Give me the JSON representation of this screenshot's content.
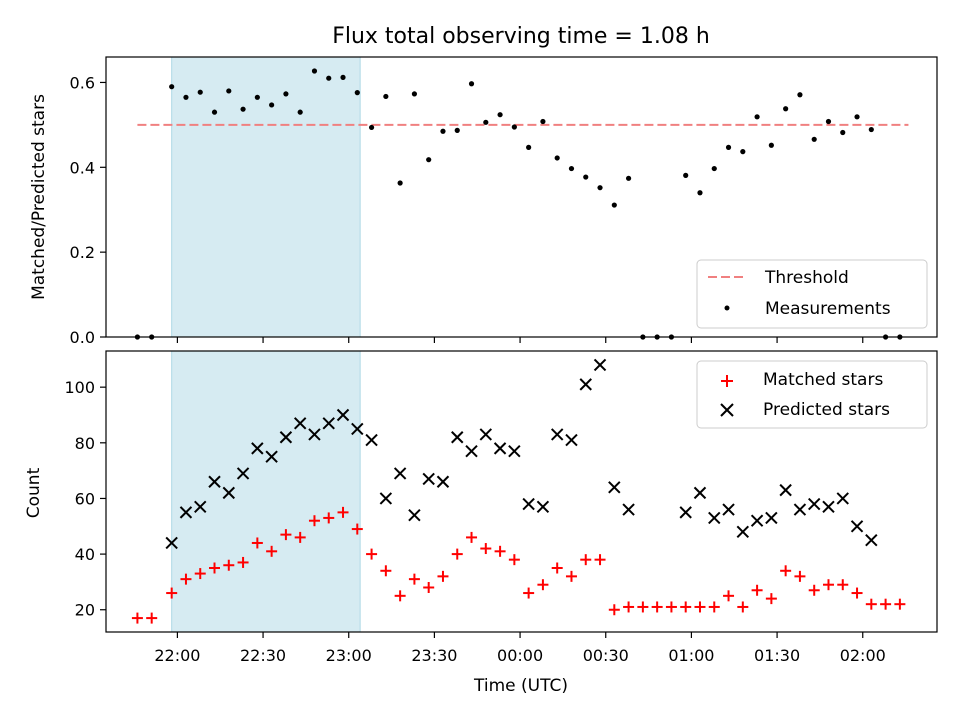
{
  "title": "Flux total observing time = 1.08 h",
  "colors": {
    "threshold": "#f08080",
    "measurements": "#000000",
    "matched": "#ff0000",
    "predicted": "#000000",
    "highlight": "#add8e6"
  },
  "chart_data": [
    {
      "type": "scatter",
      "ylabel": "Matched/Predicted stars",
      "ylim": [
        0,
        0.66
      ],
      "yticks": [
        "0.0",
        "0.2",
        "0.4",
        "0.6"
      ],
      "legend": {
        "placement": "lower-right",
        "entries": [
          "Threshold",
          "Measurements"
        ]
      },
      "threshold": {
        "name": "Threshold",
        "y": 0.5,
        "x_start": "21:46",
        "x_end": "02:16"
      },
      "highlight_span": [
        "21:58",
        "23:04"
      ],
      "series": [
        {
          "name": "Measurements",
          "points": [
            [
              "21:46",
              0.0
            ],
            [
              "21:51",
              0.0
            ],
            [
              "21:58",
              0.59
            ],
            [
              "22:03",
              0.565
            ],
            [
              "22:08",
              0.577
            ],
            [
              "22:13",
              0.53
            ],
            [
              "22:18",
              0.58
            ],
            [
              "22:23",
              0.537
            ],
            [
              "22:28",
              0.565
            ],
            [
              "22:33",
              0.547
            ],
            [
              "22:38",
              0.573
            ],
            [
              "22:43",
              0.53
            ],
            [
              "22:48",
              0.627
            ],
            [
              "22:53",
              0.61
            ],
            [
              "22:58",
              0.612
            ],
            [
              "23:03",
              0.576
            ],
            [
              "23:08",
              0.494
            ],
            [
              "23:13",
              0.567
            ],
            [
              "23:18",
              0.363
            ],
            [
              "23:23",
              0.573
            ],
            [
              "23:28",
              0.418
            ],
            [
              "23:33",
              0.485
            ],
            [
              "23:38",
              0.487
            ],
            [
              "23:43",
              0.597
            ],
            [
              "23:48",
              0.506
            ],
            [
              "23:53",
              0.524
            ],
            [
              "23:58",
              0.495
            ],
            [
              "00:03",
              0.447
            ],
            [
              "00:08",
              0.508
            ],
            [
              "00:13",
              0.422
            ],
            [
              "00:18",
              0.397
            ],
            [
              "00:23",
              0.377
            ],
            [
              "00:28",
              0.352
            ],
            [
              "00:33",
              0.311
            ],
            [
              "00:38",
              0.374
            ],
            [
              "00:43",
              0.0
            ],
            [
              "00:48",
              0.0
            ],
            [
              "00:53",
              0.0
            ],
            [
              "00:58",
              0.381
            ],
            [
              "01:03",
              0.34
            ],
            [
              "01:08",
              0.397
            ],
            [
              "01:13",
              0.447
            ],
            [
              "01:18",
              0.437
            ],
            [
              "01:23",
              0.519
            ],
            [
              "01:28",
              0.452
            ],
            [
              "01:33",
              0.538
            ],
            [
              "01:38",
              0.571
            ],
            [
              "01:43",
              0.466
            ],
            [
              "01:48",
              0.508
            ],
            [
              "01:53",
              0.482
            ],
            [
              "01:58",
              0.519
            ],
            [
              "02:03",
              0.489
            ],
            [
              "02:08",
              0.0
            ],
            [
              "02:13",
              0.0
            ]
          ]
        }
      ]
    },
    {
      "type": "scatter",
      "xlabel": "Time (UTC)",
      "ylabel": "Count",
      "xticks": [
        "22:00",
        "22:30",
        "23:00",
        "23:30",
        "00:00",
        "00:30",
        "01:00",
        "01:30",
        "02:00"
      ],
      "xlim": [
        "21:35",
        "02:26"
      ],
      "ylim": [
        12,
        113
      ],
      "yticks": [
        "20",
        "40",
        "60",
        "80",
        "100"
      ],
      "legend": {
        "placement": "top-right",
        "entries": [
          "Matched stars",
          "Predicted stars"
        ]
      },
      "highlight_span": [
        "21:58",
        "23:04"
      ],
      "series": [
        {
          "name": "Matched stars",
          "marker": "plus",
          "points": [
            [
              "21:46",
              17
            ],
            [
              "21:51",
              17
            ],
            [
              "21:58",
              26
            ],
            [
              "22:03",
              31
            ],
            [
              "22:08",
              33
            ],
            [
              "22:13",
              35
            ],
            [
              "22:18",
              36
            ],
            [
              "22:23",
              37
            ],
            [
              "22:28",
              44
            ],
            [
              "22:33",
              41
            ],
            [
              "22:38",
              47
            ],
            [
              "22:43",
              46
            ],
            [
              "22:48",
              52
            ],
            [
              "22:53",
              53
            ],
            [
              "22:58",
              55
            ],
            [
              "23:03",
              49
            ],
            [
              "23:08",
              40
            ],
            [
              "23:13",
              34
            ],
            [
              "23:18",
              25
            ],
            [
              "23:23",
              31
            ],
            [
              "23:28",
              28
            ],
            [
              "23:33",
              32
            ],
            [
              "23:38",
              40
            ],
            [
              "23:43",
              46
            ],
            [
              "23:48",
              42
            ],
            [
              "23:53",
              41
            ],
            [
              "23:58",
              38
            ],
            [
              "00:03",
              26
            ],
            [
              "00:08",
              29
            ],
            [
              "00:13",
              35
            ],
            [
              "00:18",
              32
            ],
            [
              "00:23",
              38
            ],
            [
              "00:28",
              38
            ],
            [
              "00:33",
              20
            ],
            [
              "00:38",
              21
            ],
            [
              "00:43",
              21
            ],
            [
              "00:48",
              21
            ],
            [
              "00:53",
              21
            ],
            [
              "00:58",
              21
            ],
            [
              "01:03",
              21
            ],
            [
              "01:08",
              21
            ],
            [
              "01:13",
              25
            ],
            [
              "01:18",
              21
            ],
            [
              "01:23",
              27
            ],
            [
              "01:28",
              24
            ],
            [
              "01:33",
              34
            ],
            [
              "01:38",
              32
            ],
            [
              "01:43",
              27
            ],
            [
              "01:48",
              29
            ],
            [
              "01:53",
              29
            ],
            [
              "01:58",
              26
            ],
            [
              "02:03",
              22
            ],
            [
              "02:08",
              22
            ],
            [
              "02:13",
              22
            ]
          ]
        },
        {
          "name": "Predicted stars",
          "marker": "x",
          "points": [
            [
              "21:58",
              44
            ],
            [
              "22:03",
              55
            ],
            [
              "22:08",
              57
            ],
            [
              "22:13",
              66
            ],
            [
              "22:18",
              62
            ],
            [
              "22:23",
              69
            ],
            [
              "22:28",
              78
            ],
            [
              "22:33",
              75
            ],
            [
              "22:38",
              82
            ],
            [
              "22:43",
              87
            ],
            [
              "22:48",
              83
            ],
            [
              "22:53",
              87
            ],
            [
              "22:58",
              90
            ],
            [
              "23:03",
              85
            ],
            [
              "23:08",
              81
            ],
            [
              "23:13",
              60
            ],
            [
              "23:18",
              69
            ],
            [
              "23:23",
              54
            ],
            [
              "23:28",
              67
            ],
            [
              "23:33",
              66
            ],
            [
              "23:38",
              82
            ],
            [
              "23:43",
              77
            ],
            [
              "23:48",
              83
            ],
            [
              "23:53",
              78
            ],
            [
              "23:58",
              77
            ],
            [
              "00:03",
              58
            ],
            [
              "00:08",
              57
            ],
            [
              "00:13",
              83
            ],
            [
              "00:18",
              81
            ],
            [
              "00:23",
              101
            ],
            [
              "00:28",
              108
            ],
            [
              "00:33",
              64
            ],
            [
              "00:38",
              56
            ],
            [
              "00:58",
              55
            ],
            [
              "01:03",
              62
            ],
            [
              "01:08",
              53
            ],
            [
              "01:13",
              56
            ],
            [
              "01:18",
              48
            ],
            [
              "01:23",
              52
            ],
            [
              "01:28",
              53
            ],
            [
              "01:33",
              63
            ],
            [
              "01:38",
              56
            ],
            [
              "01:43",
              58
            ],
            [
              "01:48",
              57
            ],
            [
              "01:53",
              60
            ],
            [
              "01:58",
              50
            ],
            [
              "02:03",
              45
            ]
          ]
        }
      ]
    }
  ]
}
